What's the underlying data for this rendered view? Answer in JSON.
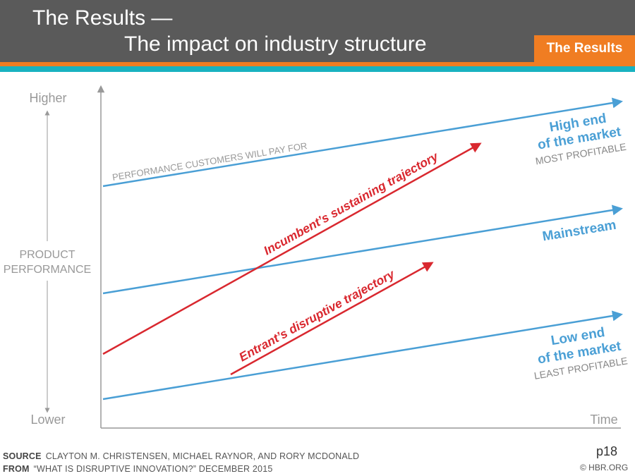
{
  "slide": {
    "title_line1": "The Results —",
    "title_line2": "The impact on industry structure",
    "badge": "The Results",
    "page_number": "p18"
  },
  "colors": {
    "header_bg": "#5a5a5a",
    "accent_orange": "#f07d22",
    "accent_teal": "#19b2c0",
    "market_blue": "#4a9fd5",
    "trajectory_red": "#d9282f",
    "axis_gray": "#999999"
  },
  "diagram": {
    "y_axis": {
      "top_label": "Higher",
      "bottom_label": "Lower",
      "title_line1": "PRODUCT",
      "title_line2": "PERFORMANCE"
    },
    "x_axis": {
      "label": "Time"
    },
    "market_lines": {
      "top_label": "PERFORMANCE CUSTOMERS WILL PAY FOR",
      "high_end_line1": "High end",
      "high_end_line2": "of the market",
      "high_end_note": "MOST PROFITABLE",
      "mainstream": "Mainstream",
      "low_end_line1": "Low end",
      "low_end_line2": "of the market",
      "low_end_note": "LEAST PROFITABLE"
    },
    "trajectories": {
      "incumbent": "Incumbent’s sustaining trajectory",
      "entrant": "Entrant’s disruptive trajectory"
    }
  },
  "footer": {
    "source_label": "SOURCE",
    "source_text": "CLAYTON M. CHRISTENSEN, MICHAEL RAYNOR, AND RORY MCDONALD",
    "from_label": "FROM",
    "from_text": "“WHAT IS DISRUPTIVE INNOVATION?” DECEMBER 2015",
    "copyright": "© HBR.ORG"
  }
}
